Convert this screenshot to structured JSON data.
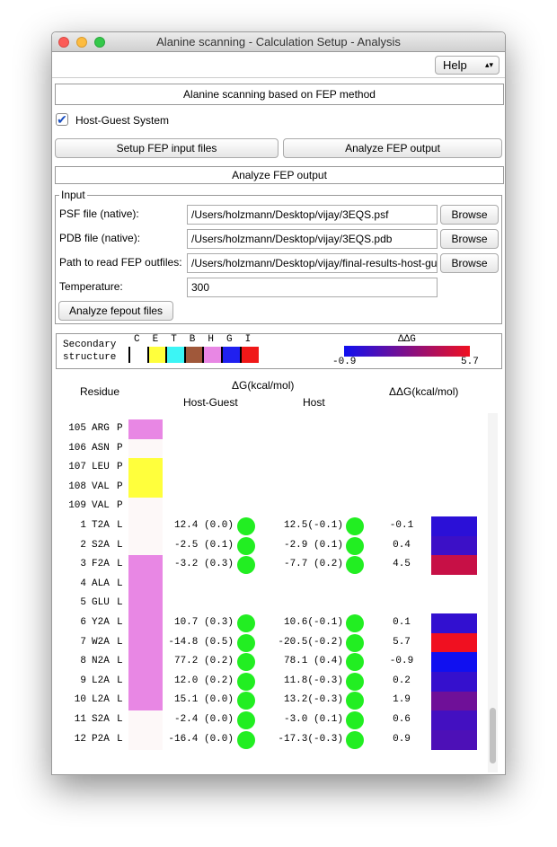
{
  "window": {
    "title": "Alanine scanning - Calculation Setup - Analysis"
  },
  "menu": {
    "help": "Help"
  },
  "header": "Alanine scanning based on FEP method",
  "checkbox": {
    "label": "Host-Guest System",
    "checked": true
  },
  "buttons": [
    "Setup FEP input files",
    "Analyze FEP output"
  ],
  "section": "Analyze FEP output",
  "input": {
    "legend": "Input",
    "fields": [
      {
        "label": "PSF file (native):",
        "value": "/Users/holzmann/Desktop/vijay/3EQS.psf",
        "button": "Browse"
      },
      {
        "label": "PDB file (native):",
        "value": "/Users/holzmann/Desktop/vijay/3EQS.pdb",
        "button": "Browse"
      },
      {
        "label": "Path to read FEP outfiles:",
        "value": "/Users/holzmann/Desktop/vijay/final-results-host-guest",
        "button": "Browse"
      }
    ],
    "temperature": {
      "label": "Temperature:",
      "value": "300"
    },
    "analyze": "Analyze fepout files"
  },
  "ss_legend": {
    "label": [
      "Secondary",
      "structure"
    ],
    "codes": [
      {
        "code": "C",
        "color": "#ffffff"
      },
      {
        "code": "E",
        "color": "#ffff3c"
      },
      {
        "code": "T",
        "color": "#3cf5f5"
      },
      {
        "code": "B",
        "color": "#a0583a"
      },
      {
        "code": "H",
        "color": "#e887e4"
      },
      {
        "code": "G",
        "color": "#2020f0"
      },
      {
        "code": "I",
        "color": "#f01818"
      }
    ]
  },
  "ddg_scale": {
    "title": "ΔΔG",
    "min": -0.9,
    "max": 5.7,
    "min_color": "#1010f0",
    "max_color": "#f01020"
  },
  "table": {
    "columns": {
      "residue": "Residue",
      "dg": "ΔG(kcal/mol)",
      "hg": "Host-Guest",
      "host": "Host",
      "ddg": "ΔΔG(kcal/mol)"
    },
    "rows": [
      {
        "num": 105,
        "name": "ARG",
        "chain": "P",
        "ss": "H"
      },
      {
        "num": 106,
        "name": "ASN",
        "chain": "P",
        "ss": "C"
      },
      {
        "num": 107,
        "name": "LEU",
        "chain": "P",
        "ss": "E"
      },
      {
        "num": 108,
        "name": "VAL",
        "chain": "P",
        "ss": "E"
      },
      {
        "num": 109,
        "name": "VAL",
        "chain": "P",
        "ss": "C"
      },
      {
        "num": 1,
        "name": "T2A",
        "chain": "L",
        "ss": "C",
        "hg": "12.4 (0.0)",
        "host": "12.5(-0.1)",
        "ddg": -0.1
      },
      {
        "num": 2,
        "name": "S2A",
        "chain": "L",
        "ss": "C",
        "hg": "-2.5 (0.1)",
        "host": "-2.9 (0.1)",
        "ddg": 0.4
      },
      {
        "num": 3,
        "name": "F2A",
        "chain": "L",
        "ss": "H",
        "hg": "-3.2 (0.3)",
        "host": "-7.7 (0.2)",
        "ddg": 4.5
      },
      {
        "num": 4,
        "name": "ALA",
        "chain": "L",
        "ss": "H"
      },
      {
        "num": 5,
        "name": "GLU",
        "chain": "L",
        "ss": "H"
      },
      {
        "num": 6,
        "name": "Y2A",
        "chain": "L",
        "ss": "H",
        "hg": "10.7 (0.3)",
        "host": "10.6(-0.1)",
        "ddg": 0.1
      },
      {
        "num": 7,
        "name": "W2A",
        "chain": "L",
        "ss": "H",
        "hg": "-14.8 (0.5)",
        "host": "-20.5(-0.2)",
        "ddg": 5.7
      },
      {
        "num": 8,
        "name": "N2A",
        "chain": "L",
        "ss": "H",
        "hg": "77.2 (0.2)",
        "host": "78.1 (0.4)",
        "ddg": -0.9
      },
      {
        "num": 9,
        "name": "L2A",
        "chain": "L",
        "ss": "H",
        "hg": "12.0 (0.2)",
        "host": "11.8(-0.3)",
        "ddg": 0.2
      },
      {
        "num": 10,
        "name": "L2A",
        "chain": "L",
        "ss": "H",
        "hg": "15.1 (0.0)",
        "host": "13.2(-0.3)",
        "ddg": 1.9
      },
      {
        "num": 11,
        "name": "S2A",
        "chain": "L",
        "ss": "C",
        "hg": "-2.4 (0.0)",
        "host": "-3.0 (0.1)",
        "ddg": 0.6
      },
      {
        "num": 12,
        "name": "P2A",
        "chain": "L",
        "ss": "C",
        "hg": "-16.4 (0.0)",
        "host": "-17.3(-0.3)",
        "ddg": 0.9
      }
    ]
  }
}
